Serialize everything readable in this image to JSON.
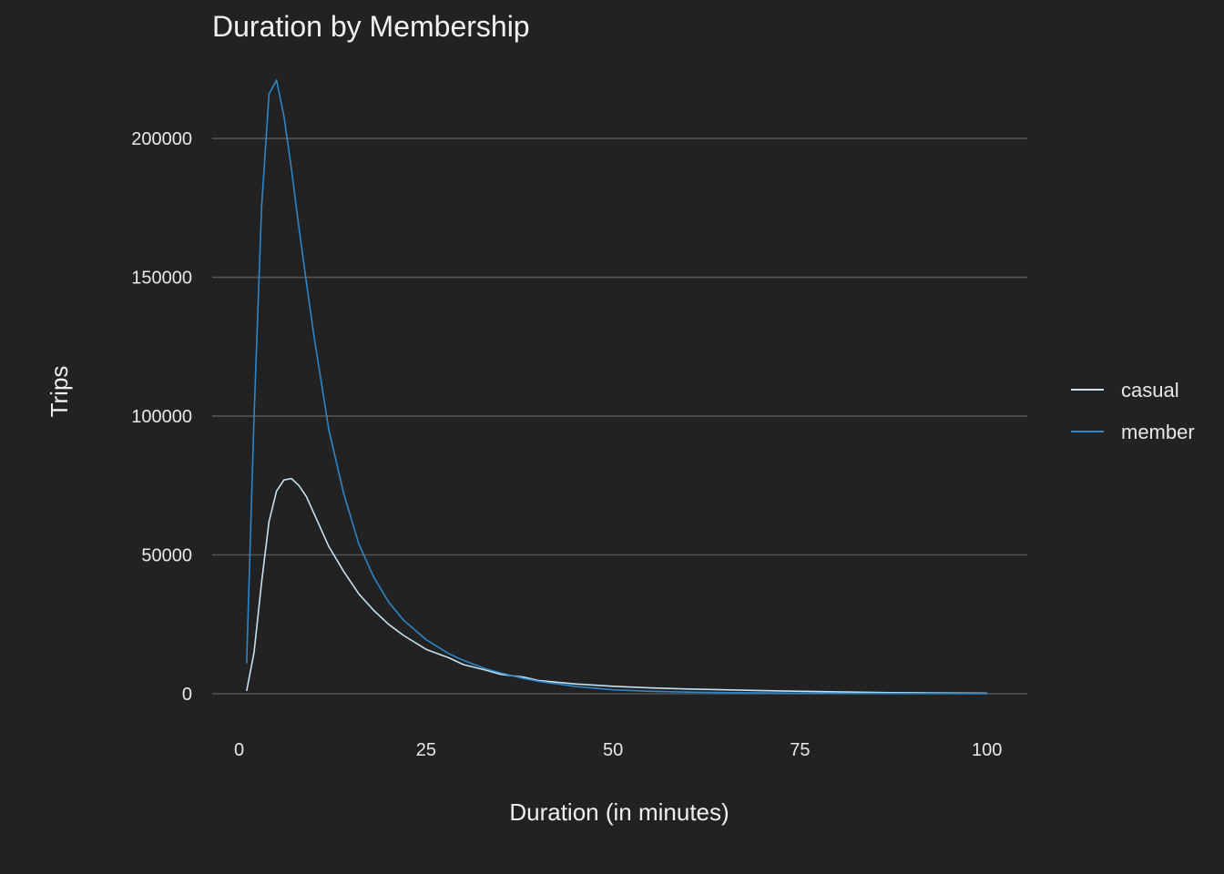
{
  "chart_data": {
    "type": "line",
    "title": "Duration by Membership",
    "xlabel": "Duration (in minutes)",
    "ylabel": "Trips",
    "xlim": [
      -3.6,
      105.4
    ],
    "ylim": [
      0,
      221000
    ],
    "x_ticks": [
      0,
      25,
      50,
      75,
      100
    ],
    "x_tick_labels": [
      "0",
      "25",
      "50",
      "75",
      "100"
    ],
    "y_ticks": [
      0,
      50000,
      100000,
      150000,
      200000
    ],
    "y_tick_labels": [
      "0",
      "50000",
      "100000",
      "150000",
      "200000"
    ],
    "grid": true,
    "grid_axis": "y",
    "legend_position": "right",
    "series": [
      {
        "name": "casual",
        "color": "#c6e2f0",
        "x": [
          1,
          2,
          3,
          4,
          5,
          6,
          7,
          8,
          9,
          10,
          12,
          14,
          16,
          18,
          20,
          22,
          25,
          28,
          30,
          33,
          35,
          38,
          40,
          45,
          50,
          55,
          60,
          65,
          70,
          75,
          80,
          87,
          100
        ],
        "y": [
          1000,
          15000,
          40000,
          62000,
          73000,
          77000,
          77500,
          75000,
          71000,
          65000,
          53000,
          44000,
          36000,
          30000,
          25000,
          21000,
          16000,
          13000,
          10500,
          8500,
          7000,
          6000,
          4800,
          3500,
          2700,
          2100,
          1700,
          1400,
          1100,
          900,
          700,
          400,
          200
        ]
      },
      {
        "name": "member",
        "color": "#2f86c8",
        "x": [
          1,
          2,
          3,
          4,
          5,
          6,
          7,
          8,
          9,
          10,
          12,
          14,
          16,
          18,
          20,
          22,
          25,
          28,
          30,
          33,
          35,
          38,
          40,
          45,
          50,
          55,
          60,
          65,
          70,
          75,
          80,
          87,
          100
        ],
        "y": [
          11000,
          100000,
          175000,
          216000,
          221000,
          208000,
          189000,
          168000,
          148000,
          129000,
          95000,
          72000,
          54000,
          42000,
          33000,
          26500,
          19500,
          14500,
          12000,
          9000,
          7500,
          5500,
          4500,
          2600,
          1400,
          900,
          600,
          400,
          300,
          200,
          150,
          100,
          50
        ]
      }
    ]
  }
}
